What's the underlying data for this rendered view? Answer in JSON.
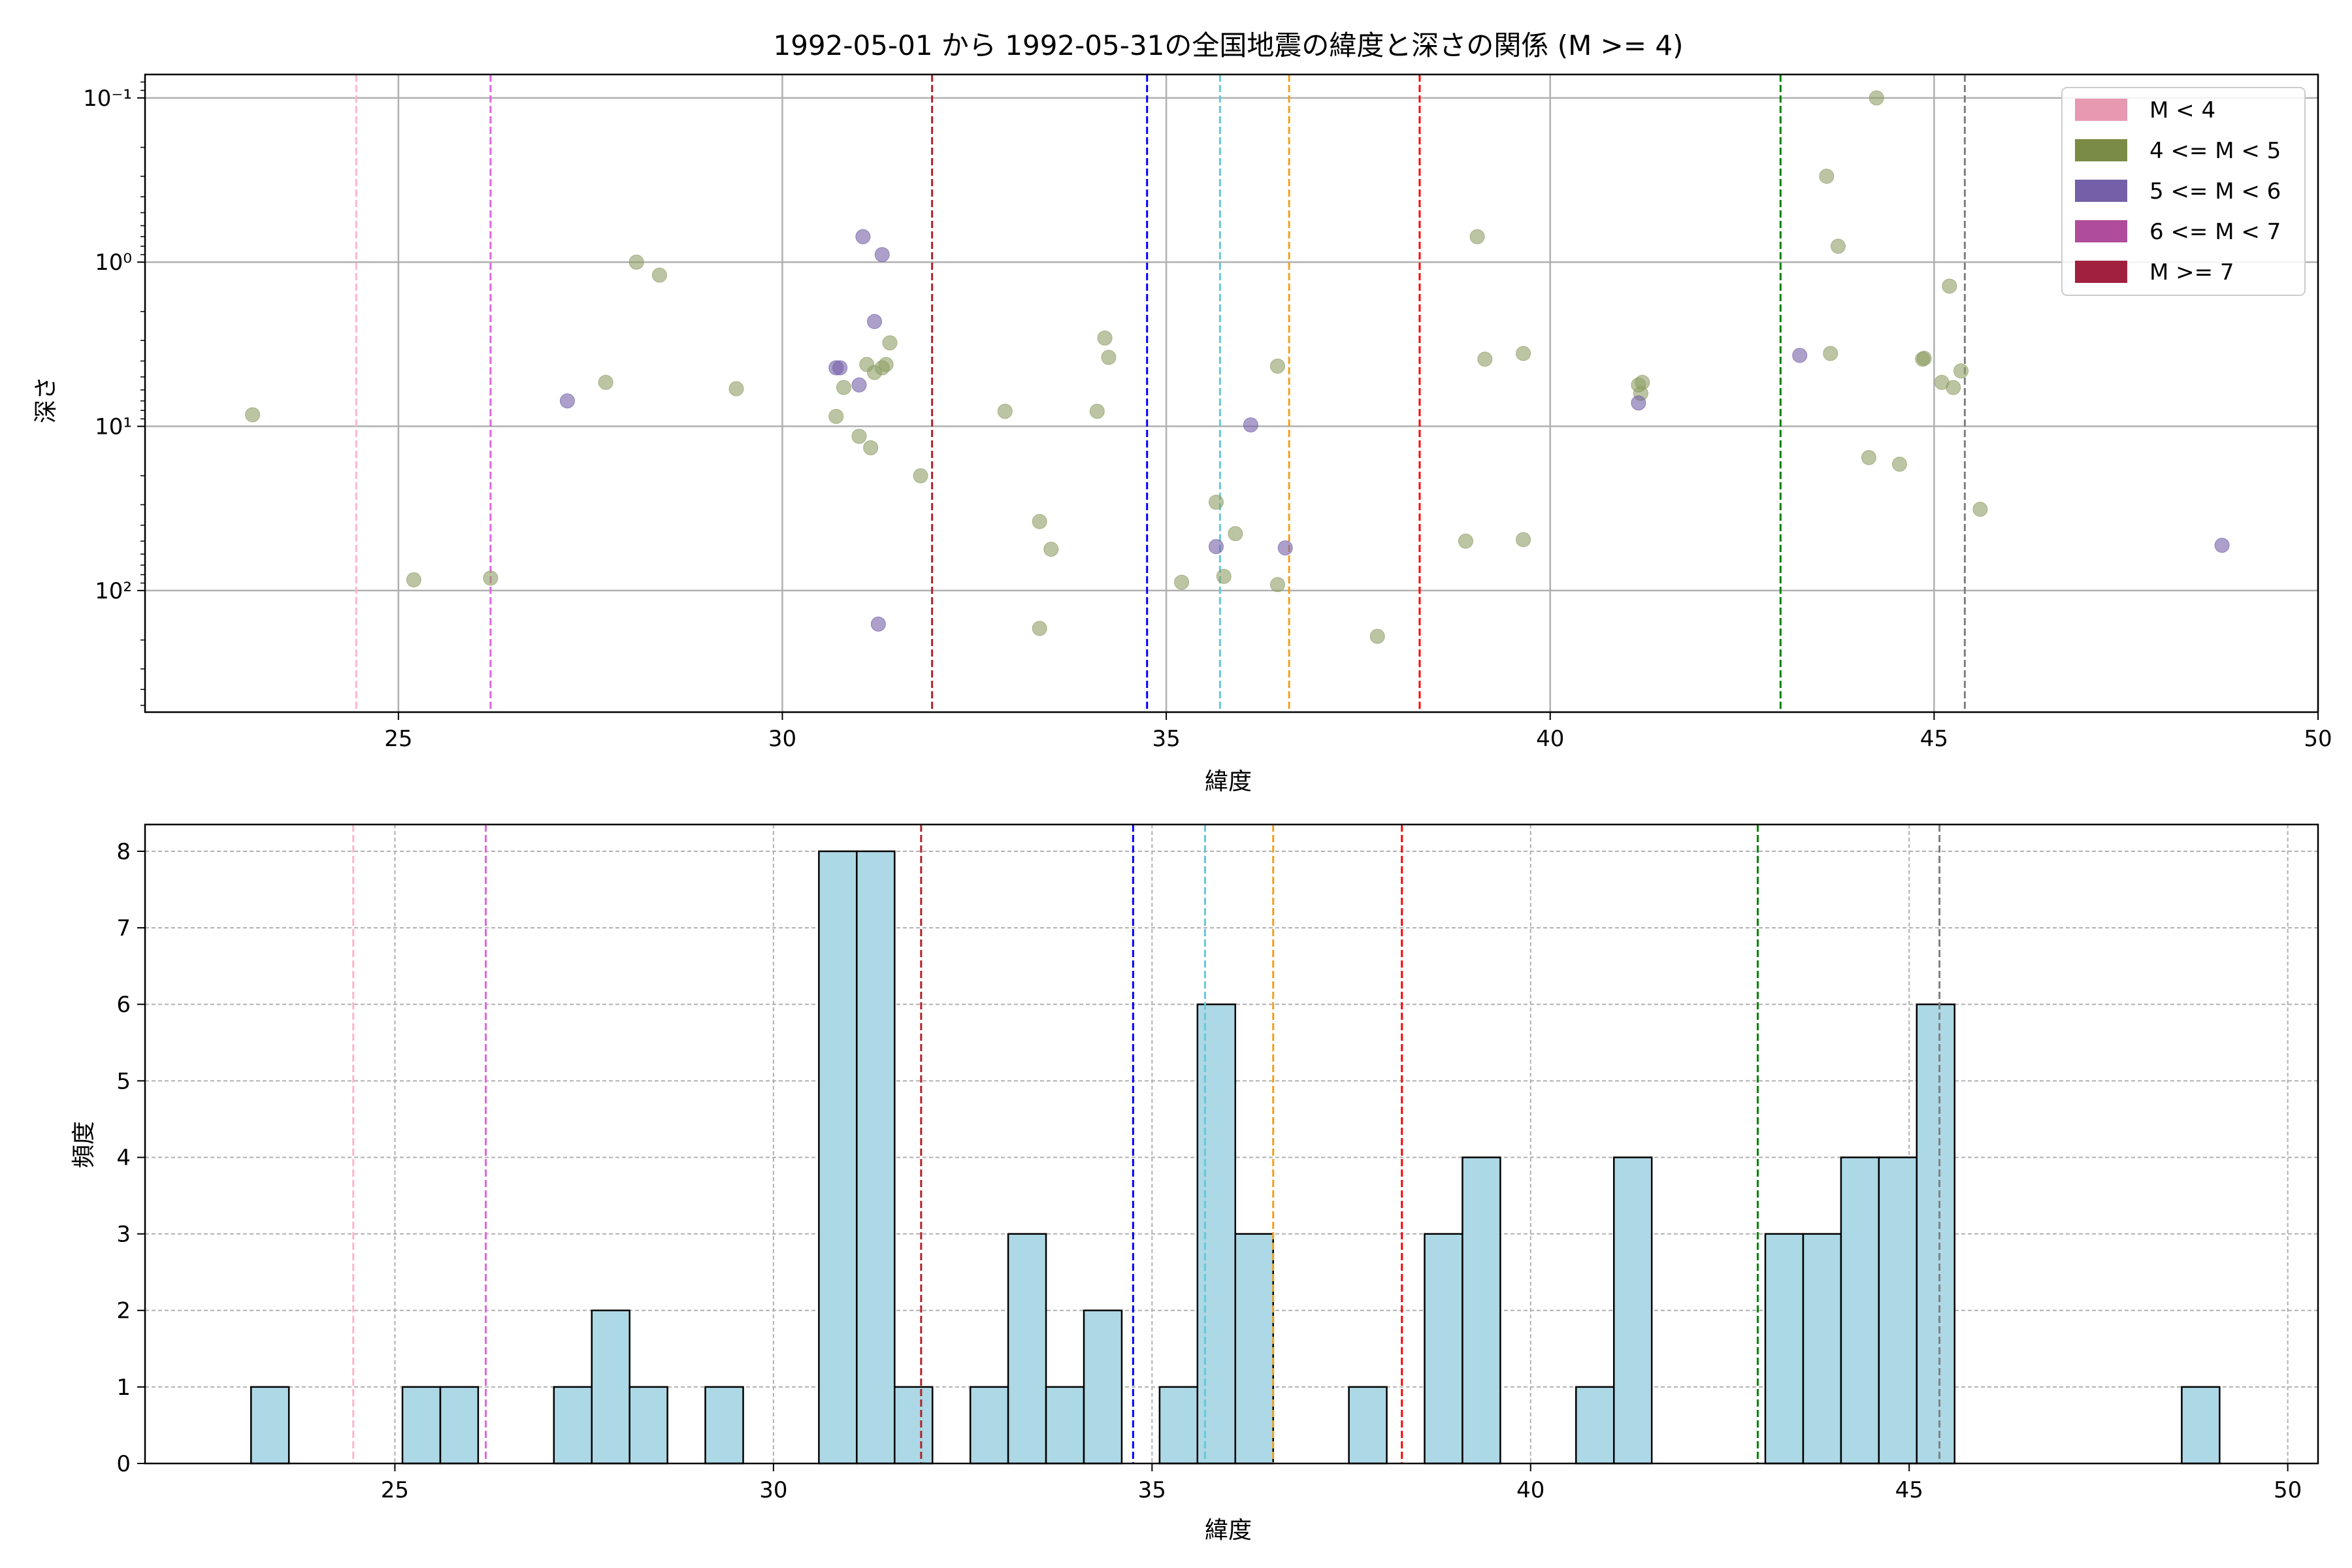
{
  "chart_data": [
    {
      "type": "scatter",
      "title": "1992-05-01 から 1992-05-31の全国地震の緯度と深さの関係 (M >= 4)",
      "xlabel": "緯度",
      "ylabel": "深さ",
      "xlim": [
        21.7,
        50.0
      ],
      "ylim": [
        550,
        0.072
      ],
      "yscale": "log-inverted",
      "xticks": [
        25,
        30,
        35,
        40,
        45,
        50
      ],
      "yticks": [
        {
          "value": 0.1,
          "label": "10⁻¹"
        },
        {
          "value": 1,
          "label": "10⁰"
        },
        {
          "value": 10,
          "label": "10¹"
        },
        {
          "value": 100,
          "label": "10²"
        }
      ],
      "grid": true,
      "legend_position": "top-right",
      "legend": [
        {
          "label": "M < 4",
          "color": "#e899b2"
        },
        {
          "label": "4 <= M < 5",
          "color": "#7a8b45"
        },
        {
          "label": "5 <= M < 6",
          "color": "#7460a8"
        },
        {
          "label": "6 <= M < 7",
          "color": "#b04d9a"
        },
        {
          "label": "M >= 7",
          "color": "#a1203f"
        }
      ],
      "series": [
        {
          "name": "4 <= M < 5",
          "color": "#8f9e66",
          "points": [
            [
              23.1,
              8.5
            ],
            [
              25.2,
              86
            ],
            [
              26.2,
              84
            ],
            [
              27.7,
              5.4
            ],
            [
              28.1,
              1.0
            ],
            [
              28.4,
              1.2
            ],
            [
              29.4,
              5.9
            ],
            [
              30.7,
              8.7
            ],
            [
              30.8,
              5.8
            ],
            [
              31.0,
              11.5
            ],
            [
              31.1,
              4.2
            ],
            [
              31.15,
              13.5
            ],
            [
              31.2,
              4.7
            ],
            [
              31.3,
              4.4
            ],
            [
              31.35,
              4.2
            ],
            [
              31.4,
              3.1
            ],
            [
              31.8,
              20
            ],
            [
              32.9,
              8.1
            ],
            [
              33.35,
              170
            ],
            [
              33.35,
              38
            ],
            [
              33.5,
              56
            ],
            [
              34.1,
              8.1
            ],
            [
              34.2,
              2.9
            ],
            [
              34.25,
              3.8
            ],
            [
              35.2,
              89
            ],
            [
              35.65,
              29
            ],
            [
              35.75,
              82
            ],
            [
              35.9,
              45
            ],
            [
              36.45,
              4.3
            ],
            [
              36.45,
              92
            ],
            [
              37.75,
              190
            ],
            [
              38.9,
              50
            ],
            [
              39.05,
              0.7
            ],
            [
              39.15,
              3.9
            ],
            [
              39.65,
              49
            ],
            [
              39.65,
              3.6
            ],
            [
              41.15,
              5.6
            ],
            [
              41.18,
              6.3
            ],
            [
              41.2,
              5.4
            ],
            [
              43.6,
              0.3
            ],
            [
              43.65,
              3.6
            ],
            [
              43.75,
              0.8
            ],
            [
              44.15,
              15.5
            ],
            [
              44.25,
              0.1
            ],
            [
              44.55,
              17
            ],
            [
              44.85,
              3.9
            ],
            [
              44.87,
              3.85
            ],
            [
              45.1,
              5.4
            ],
            [
              45.2,
              1.4
            ],
            [
              45.25,
              5.8
            ],
            [
              45.35,
              4.6
            ],
            [
              45.6,
              32
            ]
          ]
        },
        {
          "name": "5 <= M < 6",
          "color": "#7460a8",
          "points": [
            [
              27.2,
              7.0
            ],
            [
              30.7,
              4.4
            ],
            [
              30.75,
              4.4
            ],
            [
              31.0,
              5.6
            ],
            [
              31.05,
              0.7
            ],
            [
              31.2,
              2.3
            ],
            [
              31.25,
              160
            ],
            [
              31.3,
              0.9
            ],
            [
              35.65,
              54
            ],
            [
              36.1,
              9.8
            ],
            [
              36.55,
              55
            ],
            [
              41.15,
              7.2
            ],
            [
              43.25,
              3.7
            ],
            [
              48.75,
              53
            ]
          ]
        }
      ],
      "vlines": [
        {
          "x": 24.45,
          "color": "#ffb6c8"
        },
        {
          "x": 26.2,
          "color": "#e066e0"
        },
        {
          "x": 31.95,
          "color": "#b2222a"
        },
        {
          "x": 34.75,
          "color": "#0000ff"
        },
        {
          "x": 35.7,
          "color": "#66c8d8"
        },
        {
          "x": 36.6,
          "color": "#f0a020"
        },
        {
          "x": 38.3,
          "color": "#ff0000"
        },
        {
          "x": 43.0,
          "color": "#008000"
        },
        {
          "x": 45.4,
          "color": "#808080"
        }
      ]
    },
    {
      "type": "bar",
      "xlabel": "緯度",
      "ylabel": "頻度",
      "xlim": [
        21.7,
        50.4
      ],
      "ylim": [
        0,
        8.35
      ],
      "xticks": [
        25,
        30,
        35,
        40,
        45,
        50
      ],
      "yticks": [
        0,
        1,
        2,
        3,
        4,
        5,
        6,
        7,
        8
      ],
      "grid": true,
      "color": "#add8e6",
      "bin_width": 0.5,
      "bins": [
        {
          "start": 23.1,
          "count": 1
        },
        {
          "start": 25.1,
          "count": 1
        },
        {
          "start": 25.6,
          "count": 1
        },
        {
          "start": 27.1,
          "count": 1
        },
        {
          "start": 27.6,
          "count": 2
        },
        {
          "start": 28.1,
          "count": 1
        },
        {
          "start": 29.1,
          "count": 1
        },
        {
          "start": 30.6,
          "count": 8
        },
        {
          "start": 31.1,
          "count": 8
        },
        {
          "start": 31.6,
          "count": 1
        },
        {
          "start": 32.6,
          "count": 1
        },
        {
          "start": 33.1,
          "count": 3
        },
        {
          "start": 33.6,
          "count": 1
        },
        {
          "start": 34.1,
          "count": 2
        },
        {
          "start": 35.1,
          "count": 1
        },
        {
          "start": 35.6,
          "count": 6
        },
        {
          "start": 36.1,
          "count": 3
        },
        {
          "start": 37.6,
          "count": 1
        },
        {
          "start": 38.6,
          "count": 3
        },
        {
          "start": 39.1,
          "count": 4
        },
        {
          "start": 40.6,
          "count": 1
        },
        {
          "start": 41.1,
          "count": 4
        },
        {
          "start": 43.1,
          "count": 3
        },
        {
          "start": 43.6,
          "count": 3
        },
        {
          "start": 44.1,
          "count": 4
        },
        {
          "start": 44.6,
          "count": 4
        },
        {
          "start": 45.1,
          "count": 6
        },
        {
          "start": 48.6,
          "count": 1
        }
      ],
      "vlines": [
        {
          "x": 24.45,
          "color": "#ffb6c8"
        },
        {
          "x": 26.2,
          "color": "#e066e0"
        },
        {
          "x": 31.95,
          "color": "#b2222a"
        },
        {
          "x": 34.75,
          "color": "#0000ff"
        },
        {
          "x": 35.7,
          "color": "#66c8d8"
        },
        {
          "x": 36.6,
          "color": "#f0a020"
        },
        {
          "x": 38.3,
          "color": "#ff0000"
        },
        {
          "x": 43.0,
          "color": "#008000"
        },
        {
          "x": 45.4,
          "color": "#808080"
        }
      ]
    }
  ]
}
